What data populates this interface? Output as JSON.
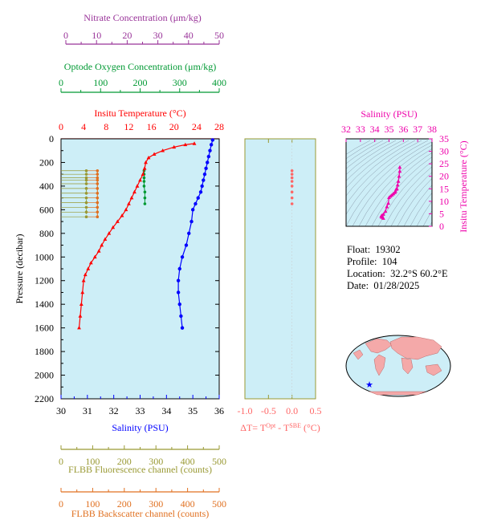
{
  "colors": {
    "temperature": "#ff0000",
    "salinity": "#0000ff",
    "oxygen": "#009933",
    "nitrate": "#993399",
    "fluorescence": "#999933",
    "backscatter": "#e07020",
    "dt": "#ff6666",
    "ts": "#ee00aa",
    "plot_bg": "#cdeef7",
    "land": "#f4a9a9"
  },
  "axes": {
    "nitrate": {
      "label": "Nitrate Concentration (μm/kg)",
      "ticks": [
        "0",
        "10",
        "20",
        "30",
        "40",
        "50"
      ],
      "range": [
        0,
        50
      ]
    },
    "oxygen": {
      "label": "Optode Oxygen Concentration (μm/kg)",
      "ticks": [
        "0",
        "100",
        "200",
        "300",
        "400"
      ],
      "range": [
        0,
        400
      ]
    },
    "temperature": {
      "label": "Insitu Temperature (°C)",
      "ticks": [
        "0",
        "4",
        "8",
        "12",
        "16",
        "20",
        "24",
        "28"
      ],
      "range": [
        0,
        28
      ]
    },
    "pressure": {
      "label": "Pressure (decibar)",
      "ticks": [
        "0",
        "200",
        "400",
        "600",
        "800",
        "1000",
        "1200",
        "1400",
        "1600",
        "1800",
        "2000",
        "2200"
      ],
      "range": [
        0,
        2200
      ]
    },
    "salinity": {
      "label": "Salinity (PSU)",
      "ticks": [
        "30",
        "31",
        "32",
        "33",
        "34",
        "35",
        "36"
      ],
      "range": [
        30,
        36
      ]
    },
    "dt": {
      "label_main": "ΔT= T",
      "sup1": "Opt",
      "label_mid": " - T",
      "sup2": "SBE",
      "label_end": " (°C)",
      "ticks": [
        "-1.0",
        "-0.5",
        "0.0",
        "0.5"
      ],
      "range": [
        -1.0,
        0.5
      ]
    },
    "fluorescence": {
      "label": "FLBB Fluorescence channel (counts)",
      "ticks": [
        "0",
        "100",
        "200",
        "300",
        "400",
        "500"
      ],
      "range": [
        0,
        500
      ]
    },
    "backscatter": {
      "label": "FLBB Backscatter channel (counts)",
      "ticks": [
        "0",
        "100",
        "200",
        "300",
        "400",
        "500"
      ],
      "range": [
        0,
        500
      ]
    },
    "ts_salinity": {
      "label": "Salinity (PSU)",
      "ticks": [
        "32",
        "33",
        "34",
        "35",
        "36",
        "37",
        "38"
      ],
      "range": [
        32,
        38
      ]
    },
    "ts_temperature": {
      "label": "Insitu Temperature (°C)",
      "ticks": [
        "0",
        "5",
        "10",
        "15",
        "20",
        "25",
        "30",
        "35"
      ],
      "range": [
        0,
        35
      ]
    }
  },
  "info": {
    "float_label": "Float:",
    "float_value": "19302",
    "profile_label": "Profile:",
    "profile_value": "104",
    "location_label": "Location:",
    "location_value": "32.2°S  60.2°E",
    "date_label": "Date:",
    "date_value": "01/28/2025"
  },
  "chart_data": [
    {
      "type": "line",
      "name": "temperature_profile",
      "x_axis": "Insitu Temperature (°C)",
      "y_axis": "Pressure (decibar)",
      "ylim": [
        0,
        2200
      ],
      "points": [
        [
          23.6,
          40
        ],
        [
          22,
          50
        ],
        [
          20,
          70
        ],
        [
          18,
          100
        ],
        [
          16.5,
          130
        ],
        [
          15.5,
          160
        ],
        [
          15,
          200
        ],
        [
          14.8,
          250
        ],
        [
          14.5,
          300
        ],
        [
          14,
          350
        ],
        [
          13.5,
          400
        ],
        [
          13,
          450
        ],
        [
          12.5,
          500
        ],
        [
          12,
          550
        ],
        [
          11.5,
          600
        ],
        [
          10.8,
          650
        ],
        [
          10,
          700
        ],
        [
          9.2,
          750
        ],
        [
          8.5,
          800
        ],
        [
          7.8,
          850
        ],
        [
          7.2,
          900
        ],
        [
          6.7,
          950
        ],
        [
          6,
          1000
        ],
        [
          5.3,
          1050
        ],
        [
          4.8,
          1100
        ],
        [
          4.3,
          1150
        ],
        [
          4.0,
          1200
        ],
        [
          3.8,
          1300
        ],
        [
          3.6,
          1400
        ],
        [
          3.4,
          1500
        ],
        [
          3.2,
          1600
        ]
      ]
    },
    {
      "type": "line",
      "name": "salinity_profile",
      "x_axis": "Salinity (PSU)",
      "y_axis": "Pressure (decibar)",
      "points": [
        [
          35.75,
          10
        ],
        [
          35.7,
          50
        ],
        [
          35.65,
          100
        ],
        [
          35.6,
          150
        ],
        [
          35.55,
          200
        ],
        [
          35.5,
          250
        ],
        [
          35.45,
          300
        ],
        [
          35.4,
          350
        ],
        [
          35.35,
          400
        ],
        [
          35.3,
          450
        ],
        [
          35.2,
          500
        ],
        [
          35.1,
          550
        ],
        [
          35.0,
          600
        ],
        [
          34.95,
          700
        ],
        [
          34.85,
          800
        ],
        [
          34.75,
          900
        ],
        [
          34.6,
          1000
        ],
        [
          34.5,
          1100
        ],
        [
          34.45,
          1200
        ],
        [
          34.45,
          1300
        ],
        [
          34.5,
          1400
        ],
        [
          34.55,
          1500
        ],
        [
          34.6,
          1600
        ]
      ]
    },
    {
      "type": "scatter",
      "name": "oxygen_profile",
      "x_axis": "Optode Oxygen Concentration (μm/kg)",
      "y_axis": "Pressure (decibar)",
      "points": [
        [
          210,
          270
        ],
        [
          210,
          300
        ],
        [
          210,
          330
        ],
        [
          210,
          360
        ],
        [
          210,
          400
        ],
        [
          212,
          450
        ],
        [
          212,
          500
        ],
        [
          212,
          550
        ]
      ]
    },
    {
      "type": "line",
      "name": "fluorescence_profile",
      "x_axis": "FLBB Fluorescence channel (counts)",
      "y_axis": "Pressure (decibar)",
      "points": [
        [
          80,
          270
        ],
        [
          80,
          300
        ],
        [
          80,
          330
        ],
        [
          80,
          350
        ],
        [
          80,
          380
        ],
        [
          80,
          420
        ],
        [
          80,
          460
        ],
        [
          80,
          500
        ],
        [
          80,
          540
        ],
        [
          80,
          580
        ],
        [
          80,
          620
        ],
        [
          80,
          660
        ]
      ]
    },
    {
      "type": "line",
      "name": "backscatter_profile",
      "x_axis": "FLBB Backscatter channel (counts)",
      "y_axis": "Pressure (decibar)",
      "points": [
        [
          115,
          270
        ],
        [
          115,
          300
        ],
        [
          115,
          330
        ],
        [
          115,
          350
        ],
        [
          115,
          380
        ],
        [
          115,
          420
        ],
        [
          115,
          460
        ],
        [
          115,
          500
        ],
        [
          115,
          540
        ],
        [
          115,
          580
        ],
        [
          115,
          620
        ],
        [
          115,
          660
        ]
      ]
    },
    {
      "type": "scatter",
      "name": "delta_t_profile",
      "x_axis": "ΔT (°C)",
      "y_axis": "Pressure (decibar)",
      "points": [
        [
          0.0,
          270
        ],
        [
          0.0,
          300
        ],
        [
          0.0,
          330
        ],
        [
          0.0,
          360
        ],
        [
          0.0,
          400
        ],
        [
          0.0,
          450
        ],
        [
          0.0,
          500
        ],
        [
          0.0,
          550
        ]
      ]
    },
    {
      "type": "line",
      "name": "ts_diagram",
      "x_axis": "Salinity (PSU)",
      "y_axis": "Insitu Temperature (°C)",
      "xlim": [
        32,
        38
      ],
      "ylim": [
        0,
        35
      ],
      "points": [
        [
          34.6,
          3.2
        ],
        [
          34.5,
          3.6
        ],
        [
          34.45,
          4.0
        ],
        [
          34.5,
          4.3
        ],
        [
          34.6,
          4.8
        ],
        [
          34.75,
          6.0
        ],
        [
          34.85,
          7.8
        ],
        [
          34.95,
          9.2
        ],
        [
          35.0,
          11.5
        ],
        [
          35.1,
          12.0
        ],
        [
          35.2,
          12.5
        ],
        [
          35.3,
          13.0
        ],
        [
          35.4,
          13.5
        ],
        [
          35.45,
          14.0
        ],
        [
          35.5,
          14.8
        ],
        [
          35.55,
          15.0
        ],
        [
          35.6,
          16.5
        ],
        [
          35.65,
          18.0
        ],
        [
          35.7,
          20.0
        ],
        [
          35.75,
          22.0
        ],
        [
          35.75,
          23.6
        ]
      ]
    }
  ],
  "map": {
    "location_marker": "star-icon"
  }
}
